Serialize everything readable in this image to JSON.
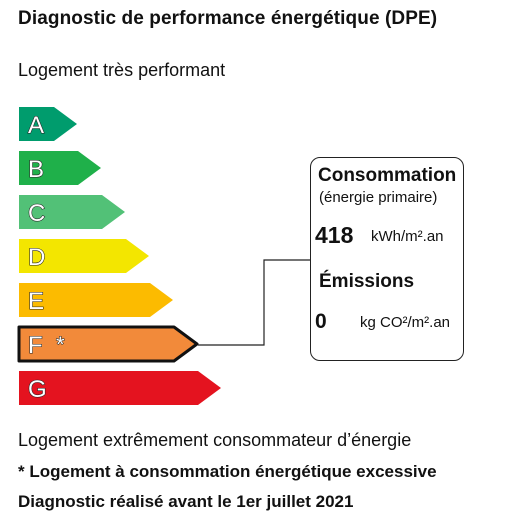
{
  "title": "Diagnostic de performance énergétique (DPE)",
  "top_label": "Logement très performant",
  "bottom_label": "Logement extrêmement consommateur d’énergie",
  "footnote_excessive": "* Logement à consommation énergétique excessive",
  "footnote_date": "Diagnostic réalisé avant le 1er juillet 2021",
  "rating": {
    "current_class": "F",
    "current_marker": "*",
    "classes": [
      {
        "letter": "A",
        "color": "#009c6d"
      },
      {
        "letter": "B",
        "color": "#1fb04a"
      },
      {
        "letter": "C",
        "color": "#52c177"
      },
      {
        "letter": "D",
        "color": "#f3e600"
      },
      {
        "letter": "E",
        "color": "#fcbb00"
      },
      {
        "letter": "F",
        "color": "#f28a3a"
      },
      {
        "letter": "G",
        "color": "#e4131f"
      }
    ]
  },
  "panel": {
    "consumption_label": "Consommation",
    "consumption_sub": "(énergie primaire)",
    "consumption_value": "418",
    "consumption_unit": "kWh/m².an",
    "emissions_label": "Émissions",
    "emissions_value": "0",
    "emissions_unit": "kg CO²/m².an"
  }
}
